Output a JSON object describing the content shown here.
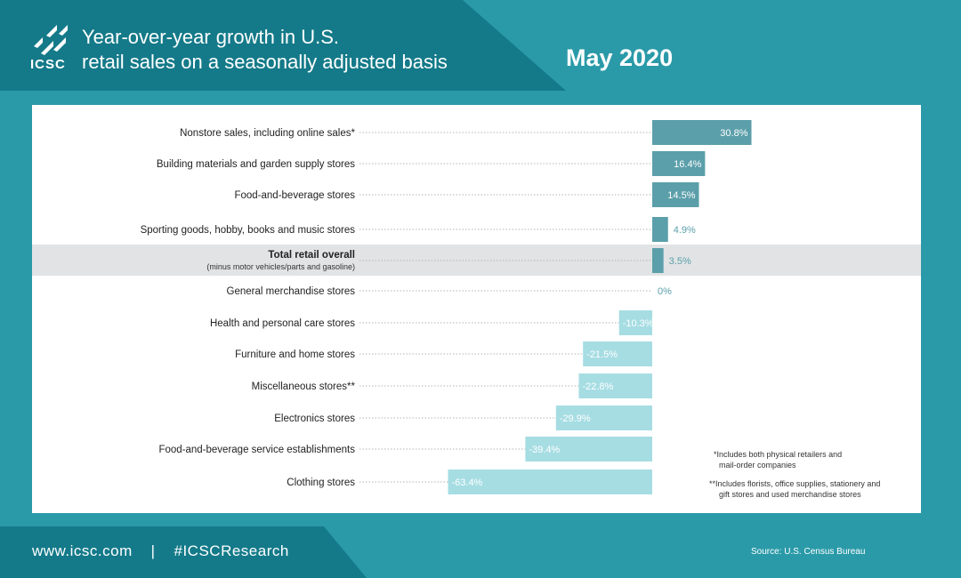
{
  "header": {
    "logo_text": "ICSC",
    "title_line1": "Year-over-year growth in U.S.",
    "title_line2": "retail sales on a seasonally adjusted basis",
    "date": "May 2020"
  },
  "colors": {
    "header_dark": "#147a89",
    "background": "#2b9aa8",
    "positive_bar": "#5b9faa",
    "negative_bar": "#a6dde3",
    "highlight_row": "#e1e3e5"
  },
  "chart_data": {
    "type": "bar",
    "orientation": "horizontal",
    "categories": [
      "Nonstore sales, including online sales*",
      "Building materials and garden supply stores",
      "Food-and-beverage stores",
      "Sporting goods, hobby, books and music stores",
      "Total retail overall",
      "General merchandise stores",
      "Health and personal care stores",
      "Furniture and home stores",
      "Miscellaneous stores**",
      "Electronics stores",
      "Food-and-beverage service establishments",
      "Clothing stores"
    ],
    "sublabels": [
      "",
      "",
      "",
      "",
      "(minus motor vehicles/parts and gasoline)",
      "",
      "",
      "",
      "",
      "",
      "",
      ""
    ],
    "values": [
      30.8,
      16.4,
      14.5,
      4.9,
      3.5,
      0,
      -10.3,
      -21.5,
      -22.8,
      -29.9,
      -39.4,
      -63.4
    ],
    "value_labels": [
      "30.8%",
      "16.4%",
      "14.5%",
      "4.9%",
      "3.5%",
      "0%",
      "-10.3%",
      "-21.5%",
      "-22.8%",
      "-29.9%",
      "-39.4%",
      "-63.4%"
    ],
    "highlight_index": 4,
    "unit": "%"
  },
  "notes": {
    "note1_line1": "*Includes both physical retailers and",
    "note1_line2": "mail-order companies",
    "note2_line1": "**Includes florists, office supplies, stationery and",
    "note2_line2": "gift stores and used merchandise stores"
  },
  "footer": {
    "website": "www.icsc.com",
    "separator": "|",
    "hashtag": "#ICSCResearch",
    "source": "Source: U.S. Census Bureau"
  }
}
